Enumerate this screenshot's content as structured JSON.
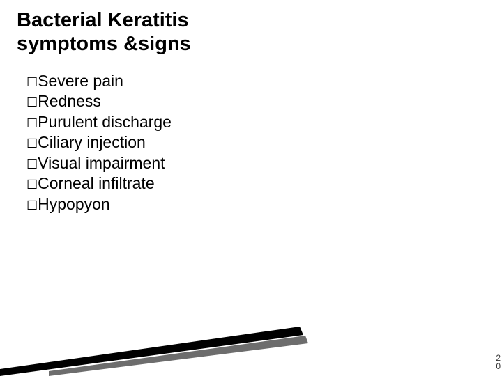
{
  "title": {
    "lines": [
      "Bacterial Keratitis",
      "symptoms &signs"
    ],
    "fontsize": 29,
    "color": "#000000",
    "fontweight": 700
  },
  "bullet": {
    "glyph": "☐",
    "fontsize": 18,
    "color": "#000000"
  },
  "list": {
    "fontsize": 23,
    "color": "#000000",
    "items": [
      "Severe pain",
      "Redness",
      "Purulent discharge",
      "Ciliary injection",
      "Visual impairment",
      "Corneal infiltrate",
      "Hypopyon"
    ]
  },
  "page_number": {
    "digits": [
      "2",
      "0"
    ],
    "fontsize": 12,
    "color": "#333333"
  },
  "decoration": {
    "stripe1_color": "#000000",
    "stripe2_color": "#6d6d6d"
  },
  "background_color": "#ffffff"
}
